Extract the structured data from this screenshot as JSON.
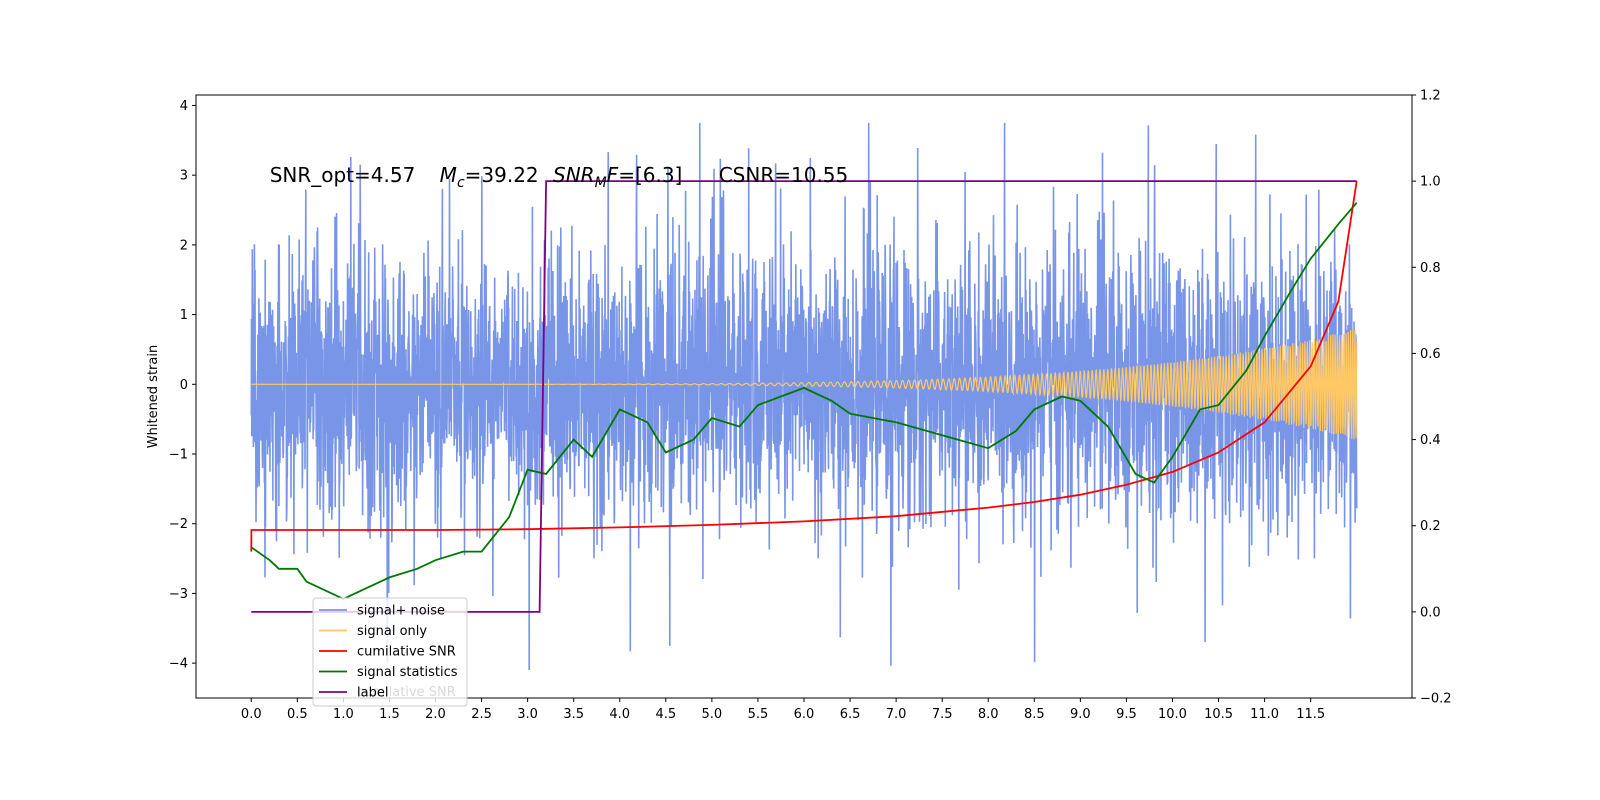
{
  "chart_data": {
    "type": "line",
    "title": "",
    "xlabel": "",
    "ylabel": "Whitened strain",
    "xlim": [
      -0.6,
      12.6
    ],
    "ylim": [
      -4.5,
      4.15
    ],
    "y2lim": [
      -0.2,
      1.2
    ],
    "x_ticks": [
      "0.0",
      "0.5",
      "1.0",
      "1.5",
      "2.0",
      "2.5",
      "3.0",
      "3.5",
      "4.0",
      "4.5",
      "5.0",
      "5.5",
      "6.0",
      "6.5",
      "7.0",
      "7.5",
      "8.0",
      "8.5",
      "9.0",
      "9.5",
      "10.0",
      "10.5",
      "11.0",
      "11.5"
    ],
    "y_ticks": [
      "−4",
      "−3",
      "−2",
      "−1",
      "0",
      "1",
      "2",
      "3",
      "4"
    ],
    "y2_ticks": [
      "−0.2",
      "0.0",
      "0.2",
      "0.4",
      "0.6",
      "0.8",
      "1.0",
      "1.2"
    ],
    "annotation": {
      "snr_opt": "SNR_opt=4.57",
      "mc_label": "M",
      "mc_sub": "c",
      "mc_value": "=39.22",
      "snrmf_label": "SNR",
      "snrmf_sub": "M",
      "snrmf_f": "F",
      "snrmf_value": "=[6.3]",
      "csnr": "CSNR=10.55"
    },
    "legend": {
      "position": "lower-left",
      "items": [
        {
          "label": "signal+ noise",
          "color": "#7895e8"
        },
        {
          "label": "signal only",
          "color": "#ffc864"
        },
        {
          "label": "cumilative SNR",
          "color": "#ff0000"
        },
        {
          "label": "signal statistics",
          "color": "#007800"
        },
        {
          "label": "label",
          "color": "#800080"
        }
      ],
      "ghost_label": "cumilative SNR"
    },
    "series": [
      {
        "name": "signal+ noise",
        "color": "#7895e8",
        "axis": "left",
        "description": "noisy strain between about -4.1 and 3.75, uniform from 0.0 to 12.0"
      },
      {
        "name": "signal only",
        "color": "#ffc864",
        "axis": "left",
        "description": "chirp with amplitude growing from 0 to about 0.8 at t=12.0"
      },
      {
        "name": "cumilative SNR",
        "color": "#ff0000",
        "axis": "right",
        "x": [
          0.0,
          0.001,
          1.0,
          2.0,
          3.0,
          4.0,
          5.0,
          6.0,
          7.0,
          8.0,
          8.5,
          9.0,
          9.5,
          10.0,
          10.5,
          11.0,
          11.5,
          11.8,
          12.0
        ],
        "y": [
          0.14,
          0.19,
          0.19,
          0.19,
          0.192,
          0.196,
          0.202,
          0.21,
          0.222,
          0.242,
          0.255,
          0.272,
          0.295,
          0.325,
          0.37,
          0.44,
          0.57,
          0.72,
          1.0
        ]
      },
      {
        "name": "signal statistics",
        "color": "#007800",
        "axis": "right",
        "x": [
          0.0,
          0.2,
          0.3,
          0.5,
          0.6,
          0.8,
          1.0,
          1.2,
          1.5,
          1.8,
          2.0,
          2.3,
          2.5,
          2.8,
          3.0,
          3.2,
          3.5,
          3.7,
          4.0,
          4.3,
          4.5,
          4.8,
          5.0,
          5.3,
          5.5,
          6.0,
          6.3,
          6.5,
          7.0,
          7.5,
          8.0,
          8.3,
          8.5,
          8.8,
          9.0,
          9.3,
          9.6,
          9.8,
          10.0,
          10.3,
          10.5,
          10.8,
          11.0,
          11.3,
          11.5,
          11.8,
          12.0
        ],
        "y": [
          0.15,
          0.12,
          0.1,
          0.1,
          0.07,
          0.05,
          0.03,
          0.05,
          0.08,
          0.1,
          0.12,
          0.14,
          0.14,
          0.22,
          0.33,
          0.32,
          0.4,
          0.36,
          0.47,
          0.44,
          0.37,
          0.4,
          0.45,
          0.43,
          0.48,
          0.52,
          0.49,
          0.46,
          0.44,
          0.41,
          0.38,
          0.42,
          0.47,
          0.5,
          0.49,
          0.43,
          0.32,
          0.3,
          0.36,
          0.47,
          0.48,
          0.56,
          0.64,
          0.75,
          0.82,
          0.9,
          0.95
        ]
      },
      {
        "name": "label",
        "color": "#800080",
        "axis": "right",
        "x": [
          0.0,
          3.13,
          3.2,
          12.0
        ],
        "y": [
          0.0,
          0.0,
          1.0,
          1.0
        ]
      }
    ],
    "grid": false
  }
}
